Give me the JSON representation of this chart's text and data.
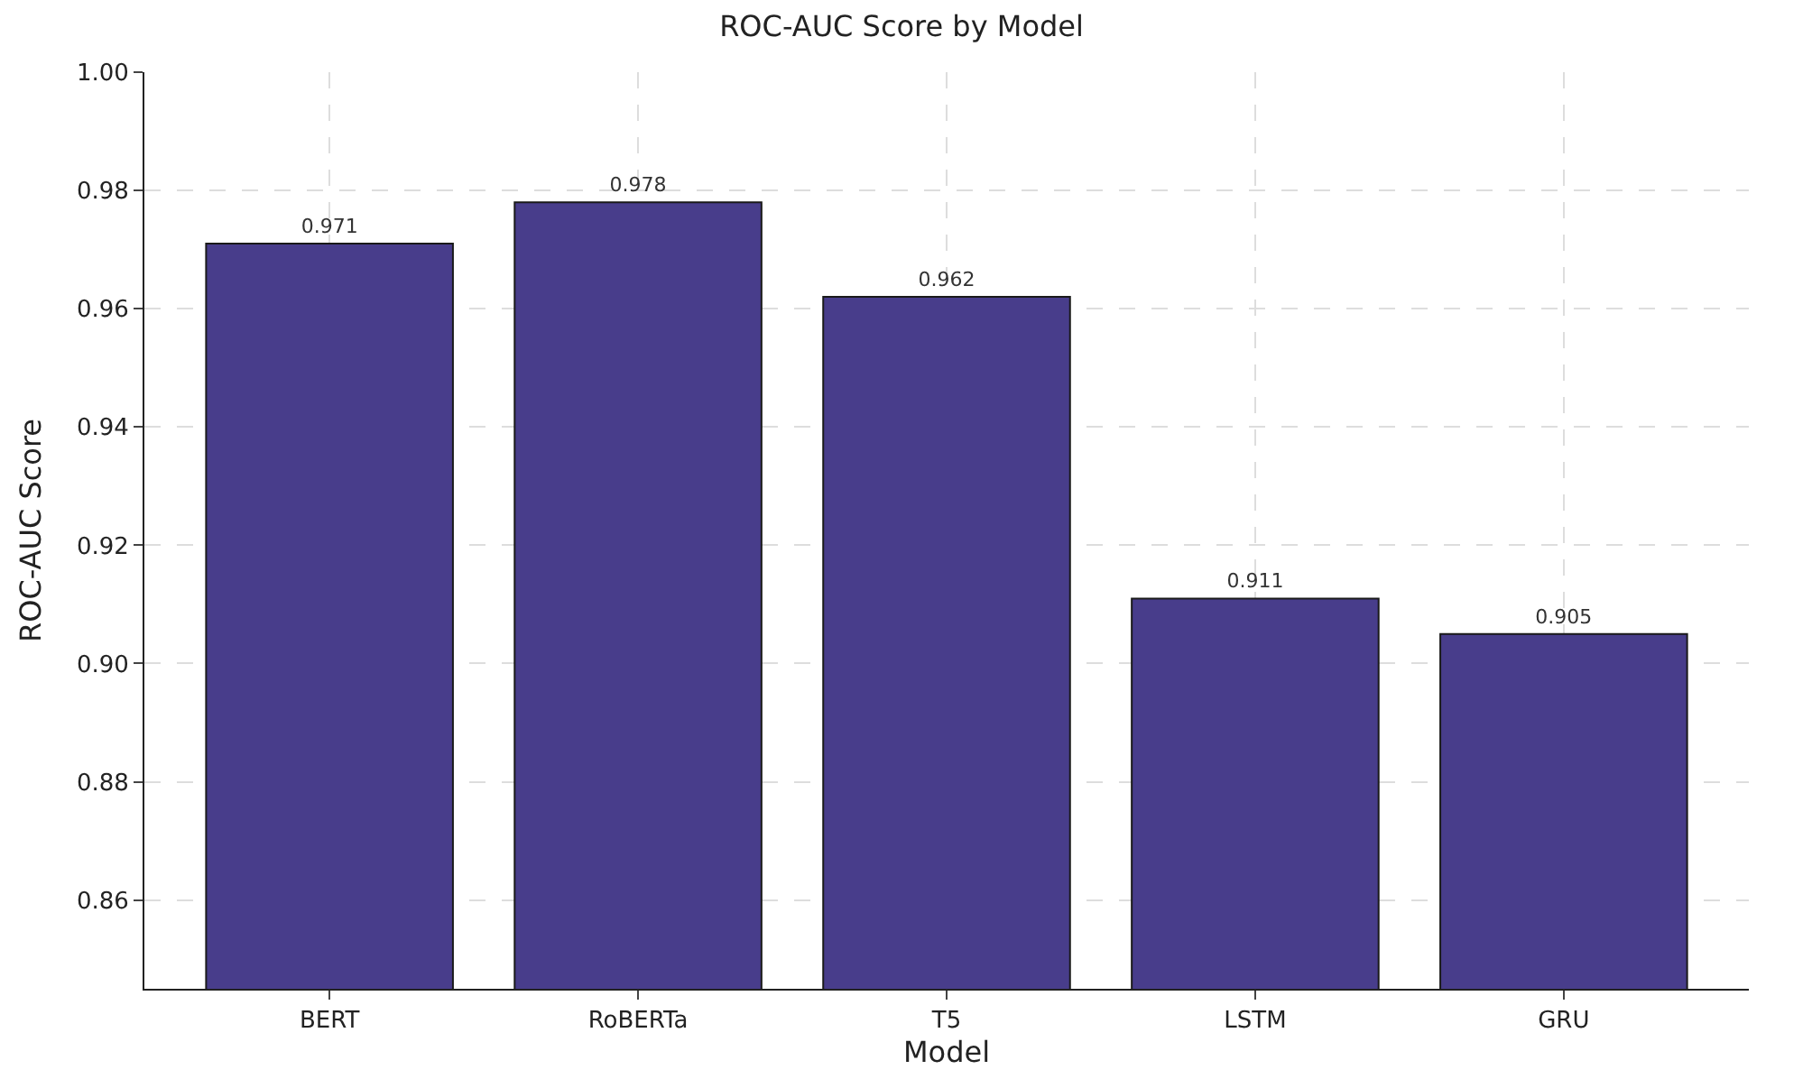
{
  "chart_data": {
    "type": "bar",
    "title": "ROC-AUC Score by Model",
    "xlabel": "Model",
    "ylabel": "ROC-AUC Score",
    "categories": [
      "BERT",
      "RoBERTa",
      "T5",
      "LSTM",
      "GRU"
    ],
    "values": [
      0.971,
      0.978,
      0.962,
      0.911,
      0.905
    ],
    "color": "#483d8b",
    "ylim": [
      0.845,
      1.0
    ],
    "yticks": [
      0.86,
      0.88,
      {
        "value": 0.9,
        "label": "0.90"
      },
      0.92,
      0.94,
      0.96,
      0.98,
      {
        "value": 1.0,
        "label": "1.00"
      }
    ],
    "grid": true,
    "data_labels": true
  }
}
